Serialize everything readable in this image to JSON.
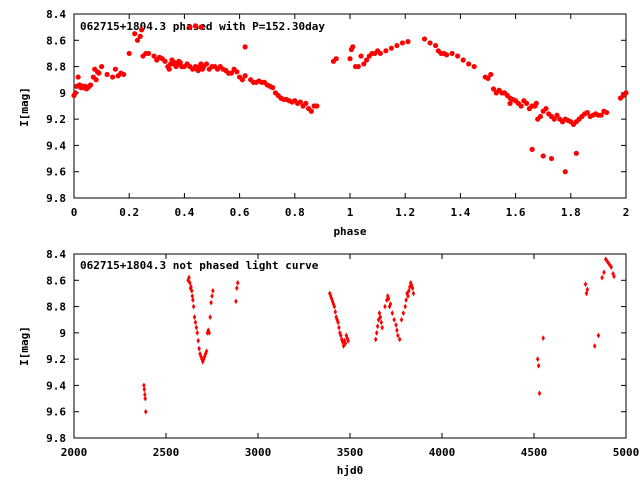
{
  "colors": {
    "series": "#ff0000",
    "axis": "#000000",
    "background": "#ffffff"
  },
  "chart_data": [
    {
      "type": "scatter",
      "title": "062715+1804.3 phased with P=152.30day",
      "xlabel": "phase",
      "ylabel": "I[mag]",
      "xlim": [
        0,
        2
      ],
      "ylim": [
        8.4,
        9.8
      ],
      "y_inverted": true,
      "xticks": [
        "0",
        "0.2",
        "0.4",
        "0.6",
        "0.8",
        "1",
        "1.2",
        "1.4",
        "1.6",
        "1.8",
        "2"
      ],
      "yticks": [
        "8.4",
        "8.6",
        "8.8",
        "9",
        "9.2",
        "9.4",
        "9.6",
        "9.8"
      ],
      "grid": false,
      "marker": "filled-circle",
      "series": [
        {
          "x": [
            0.0,
            0.005,
            0.01,
            0.015,
            0.02,
            0.025,
            0.03,
            0.035,
            0.04,
            0.045,
            0.05,
            0.055,
            0.06,
            0.07,
            0.075,
            0.08,
            0.085,
            0.09,
            0.1,
            0.12,
            0.14,
            0.16,
            0.18,
            0.2,
            0.22,
            0.23,
            0.24,
            0.245,
            0.25,
            0.26,
            0.27,
            0.29,
            0.3,
            0.31,
            0.32,
            0.33,
            0.34,
            0.345,
            0.35,
            0.355,
            0.36,
            0.365,
            0.37,
            0.375,
            0.38,
            0.385,
            0.39,
            0.4,
            0.41,
            0.42,
            0.43,
            0.44,
            0.445,
            0.45,
            0.455,
            0.46,
            0.465,
            0.47,
            0.48,
            0.49,
            0.5,
            0.51,
            0.52,
            0.53,
            0.54,
            0.55,
            0.56,
            0.57,
            0.58,
            0.59,
            0.6,
            0.61,
            0.62,
            0.64,
            0.65,
            0.66,
            0.67,
            0.68,
            0.69,
            0.7,
            0.71,
            0.72,
            0.73,
            0.74,
            0.75,
            0.76,
            0.77,
            0.78,
            0.79,
            0.8,
            0.81,
            0.82,
            0.83,
            0.84,
            0.85,
            0.86,
            0.87,
            0.88,
            0.94,
            0.95,
            1.0,
            1.005,
            1.01,
            1.02,
            1.03,
            1.04,
            1.05,
            1.06,
            1.07,
            1.08,
            1.09,
            1.1,
            1.11,
            1.13,
            1.15,
            1.17,
            1.19,
            1.21,
            1.27,
            1.29,
            1.31,
            1.32,
            1.33,
            1.34,
            1.35,
            1.37,
            1.39,
            1.41,
            1.43,
            1.45,
            1.49,
            1.5,
            1.51,
            1.52,
            1.53,
            1.54,
            1.55,
            1.56,
            1.57,
            1.58,
            1.59,
            1.6,
            1.61,
            1.62,
            1.63,
            1.64,
            1.65,
            1.66,
            1.67,
            1.675,
            1.68,
            1.69,
            1.7,
            1.71,
            1.72,
            1.73,
            1.74,
            1.75,
            1.76,
            1.77,
            1.78,
            1.79,
            1.8,
            1.81,
            1.82,
            1.83,
            1.84,
            1.85,
            1.86,
            1.87,
            1.88,
            1.89,
            1.9,
            1.91,
            1.92,
            1.93,
            1.98,
            1.99,
            2.0,
            1.66,
            1.7,
            1.73,
            1.78,
            1.82,
            1.58,
            0.42,
            0.44,
            0.46,
            0.62,
            0.15,
            0.17
          ],
          "y": [
            9.02,
            9.0,
            8.95,
            8.88,
            8.94,
            8.96,
            8.95,
            8.96,
            8.95,
            8.97,
            8.96,
            8.95,
            8.94,
            8.88,
            8.82,
            8.9,
            8.84,
            8.85,
            8.8,
            8.86,
            8.88,
            8.87,
            8.86,
            8.7,
            8.55,
            8.6,
            8.57,
            8.52,
            8.72,
            8.7,
            8.7,
            8.72,
            8.75,
            8.73,
            8.74,
            8.76,
            8.8,
            8.82,
            8.78,
            8.75,
            8.78,
            8.77,
            8.8,
            8.78,
            8.76,
            8.77,
            8.8,
            8.8,
            8.78,
            8.8,
            8.82,
            8.8,
            8.82,
            8.83,
            8.8,
            8.78,
            8.82,
            8.8,
            8.78,
            8.82,
            8.8,
            8.8,
            8.82,
            8.8,
            8.82,
            8.83,
            8.85,
            8.85,
            8.82,
            8.84,
            8.88,
            8.9,
            8.87,
            8.9,
            8.92,
            8.92,
            8.91,
            8.92,
            8.92,
            8.94,
            8.95,
            8.96,
            9.0,
            9.02,
            9.04,
            9.05,
            9.05,
            9.06,
            9.07,
            9.06,
            9.08,
            9.07,
            9.1,
            9.08,
            9.12,
            9.14,
            9.1,
            9.1,
            8.76,
            8.74,
            8.74,
            8.67,
            8.65,
            8.8,
            8.8,
            8.72,
            8.78,
            8.75,
            8.72,
            8.7,
            8.7,
            8.68,
            8.7,
            8.68,
            8.66,
            8.64,
            8.62,
            8.61,
            8.59,
            8.62,
            8.64,
            8.68,
            8.7,
            8.7,
            8.71,
            8.7,
            8.72,
            8.75,
            8.78,
            8.8,
            8.88,
            8.89,
            8.86,
            8.97,
            9.0,
            8.98,
            9.0,
            9.0,
            9.02,
            9.04,
            9.05,
            9.06,
            9.08,
            9.1,
            9.06,
            9.08,
            9.12,
            9.1,
            9.1,
            9.08,
            9.2,
            9.18,
            9.14,
            9.12,
            9.16,
            9.18,
            9.2,
            9.17,
            9.2,
            9.22,
            9.2,
            9.21,
            9.22,
            9.24,
            9.22,
            9.2,
            9.18,
            9.16,
            9.15,
            9.18,
            9.17,
            9.16,
            9.17,
            9.17,
            9.14,
            9.15,
            9.04,
            9.02,
            9.0,
            9.43,
            9.48,
            9.5,
            9.6,
            9.46,
            9.08,
            8.5,
            8.49,
            8.5,
            8.65,
            8.82,
            8.85
          ]
        }
      ]
    },
    {
      "type": "scatter",
      "title": "062715+1804.3 not phased light curve",
      "xlabel": "hjd0",
      "ylabel": "I[mag]",
      "xlim": [
        2000,
        5000
      ],
      "ylim": [
        8.4,
        9.8
      ],
      "y_inverted": true,
      "xticks": [
        "2000",
        "2500",
        "3000",
        "3500",
        "4000",
        "4500",
        "5000"
      ],
      "yticks": [
        "8.4",
        "8.6",
        "8.8",
        "9",
        "9.2",
        "9.4",
        "9.6",
        "9.8"
      ],
      "grid": false,
      "marker": "small-diamond",
      "series": [
        {
          "x": [
            2380,
            2382,
            2385,
            2387,
            2390,
            2620,
            2625,
            2630,
            2633,
            2636,
            2640,
            2643,
            2646,
            2650,
            2655,
            2660,
            2665,
            2670,
            2675,
            2680,
            2685,
            2690,
            2695,
            2700,
            2705,
            2710,
            2715,
            2720,
            2725,
            2730,
            2735,
            2740,
            2745,
            2750,
            2755,
            2880,
            2885,
            2890,
            3390,
            3395,
            3400,
            3405,
            3410,
            3415,
            3420,
            3425,
            3430,
            3435,
            3440,
            3445,
            3450,
            3455,
            3460,
            3465,
            3470,
            3475,
            3480,
            3485,
            3490,
            3640,
            3645,
            3650,
            3655,
            3660,
            3665,
            3670,
            3675,
            3690,
            3700,
            3705,
            3710,
            3715,
            3720,
            3730,
            3740,
            3750,
            3755,
            3760,
            3770,
            3780,
            3790,
            3800,
            3805,
            3810,
            3815,
            3820,
            3825,
            3830,
            3835,
            3840,
            3845,
            4520,
            4525,
            4530,
            4550,
            4780,
            4785,
            4790,
            4830,
            4850,
            4870,
            4880,
            4890,
            4900,
            4910,
            4920,
            4930,
            4935
          ],
          "y": [
            9.4,
            9.43,
            9.47,
            9.5,
            9.6,
            8.6,
            8.58,
            8.62,
            8.66,
            8.65,
            8.68,
            8.72,
            8.75,
            8.8,
            8.88,
            8.92,
            8.96,
            9.0,
            9.06,
            9.12,
            9.16,
            9.18,
            9.2,
            9.22,
            9.2,
            9.18,
            9.16,
            9.14,
            9.0,
            8.98,
            9.0,
            8.88,
            8.77,
            8.72,
            8.68,
            8.76,
            8.66,
            8.62,
            8.7,
            8.72,
            8.74,
            8.76,
            8.78,
            8.8,
            8.84,
            8.88,
            8.9,
            8.92,
            8.96,
            9.0,
            9.02,
            9.05,
            9.07,
            9.1,
            9.06,
            9.08,
            9.02,
            9.04,
            9.06,
            9.05,
            9.0,
            8.95,
            8.9,
            8.85,
            8.88,
            8.92,
            8.96,
            8.8,
            8.75,
            8.72,
            8.74,
            8.8,
            8.78,
            8.85,
            8.9,
            8.94,
            8.98,
            9.02,
            9.05,
            8.9,
            8.85,
            8.8,
            8.75,
            8.7,
            8.72,
            8.68,
            8.65,
            8.62,
            8.64,
            8.66,
            8.7,
            9.2,
            9.25,
            9.46,
            9.04,
            8.63,
            8.7,
            8.67,
            9.1,
            9.02,
            8.58,
            8.54,
            8.44,
            8.46,
            8.48,
            8.5,
            8.55,
            8.57
          ]
        }
      ]
    }
  ]
}
